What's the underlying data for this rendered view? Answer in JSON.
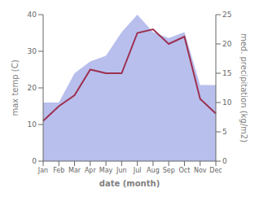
{
  "chart_data": {
    "type": "line",
    "categories": [
      "Jan",
      "Feb",
      "Mar",
      "Apr",
      "May",
      "Jun",
      "Jul",
      "Aug",
      "Sep",
      "Oct",
      "Nov",
      "Dec"
    ],
    "xlabel": "date (month)",
    "ylabel": "max temp (C)",
    "y2label": "med. precipitation (kg/m2)",
    "ylim": [
      0,
      40
    ],
    "yticks": [
      0,
      10,
      20,
      30,
      40
    ],
    "y2lim": [
      0,
      25
    ],
    "y2ticks": [
      0,
      5,
      10,
      15,
      20,
      25
    ],
    "grid": false,
    "series": [
      {
        "type": "area",
        "axis": "y2",
        "color": "#b8bfed",
        "values": [
          10,
          10,
          15,
          17,
          18,
          22,
          25,
          22,
          21,
          22,
          13,
          13
        ]
      },
      {
        "type": "line",
        "axis": "y",
        "color": "#9e3050",
        "values": [
          11,
          15,
          18,
          25,
          24,
          24,
          35,
          36,
          32,
          34,
          17,
          13
        ]
      }
    ]
  }
}
